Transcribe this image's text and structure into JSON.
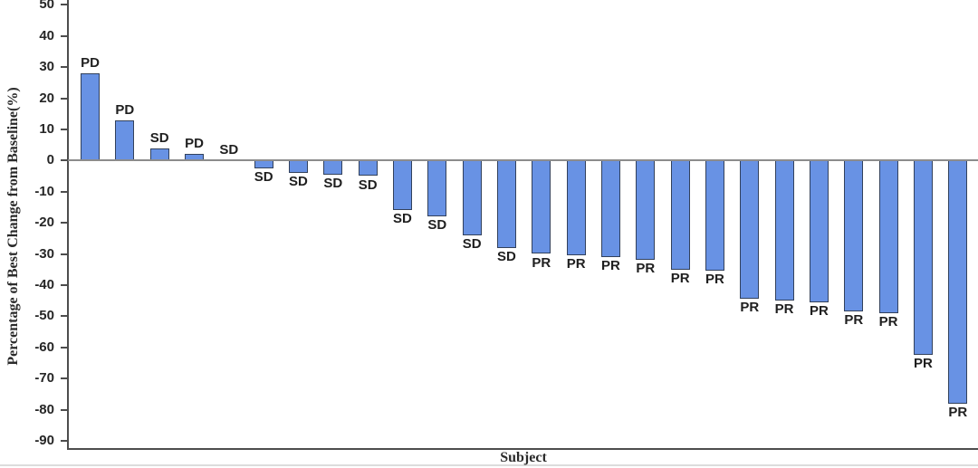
{
  "chart_data": {
    "type": "bar",
    "subtype": "waterfall",
    "title": "",
    "xlabel": "Subject",
    "ylabel": "Percentage of Best Change from Baseline(%)",
    "ylim": [
      -90,
      50
    ],
    "yticks": [
      50,
      40,
      30,
      20,
      10,
      0,
      -10,
      -20,
      -30,
      -40,
      -50,
      -60,
      -70,
      -80,
      -90
    ],
    "grid": false,
    "legend_position": "none",
    "bar_color": "#6892E4",
    "bar_border_color": "#32415C",
    "zero_line_color": "#8c8c8c",
    "axis_color": "#4d4d4d",
    "subjects": [
      {
        "response": "PD",
        "value": 28
      },
      {
        "response": "PD",
        "value": 13
      },
      {
        "response": "SD",
        "value": 4
      },
      {
        "response": "PD",
        "value": 2
      },
      {
        "response": "SD",
        "value": 0
      },
      {
        "response": "SD",
        "value": -2.5
      },
      {
        "response": "SD",
        "value": -4
      },
      {
        "response": "SD",
        "value": -4.5
      },
      {
        "response": "SD",
        "value": -5
      },
      {
        "response": "SD",
        "value": -16
      },
      {
        "response": "SD",
        "value": -18
      },
      {
        "response": "SD",
        "value": -24
      },
      {
        "response": "SD",
        "value": -28
      },
      {
        "response": "PR",
        "value": -30
      },
      {
        "response": "PR",
        "value": -30.5
      },
      {
        "response": "PR",
        "value": -31
      },
      {
        "response": "PR",
        "value": -32
      },
      {
        "response": "PR",
        "value": -35
      },
      {
        "response": "PR",
        "value": -35.5
      },
      {
        "response": "PR",
        "value": -44.5
      },
      {
        "response": "PR",
        "value": -45
      },
      {
        "response": "PR",
        "value": -45.5
      },
      {
        "response": "PR",
        "value": -48.5
      },
      {
        "response": "PR",
        "value": -49
      },
      {
        "response": "PR",
        "value": -62.5
      },
      {
        "response": "PR",
        "value": -78
      }
    ]
  }
}
